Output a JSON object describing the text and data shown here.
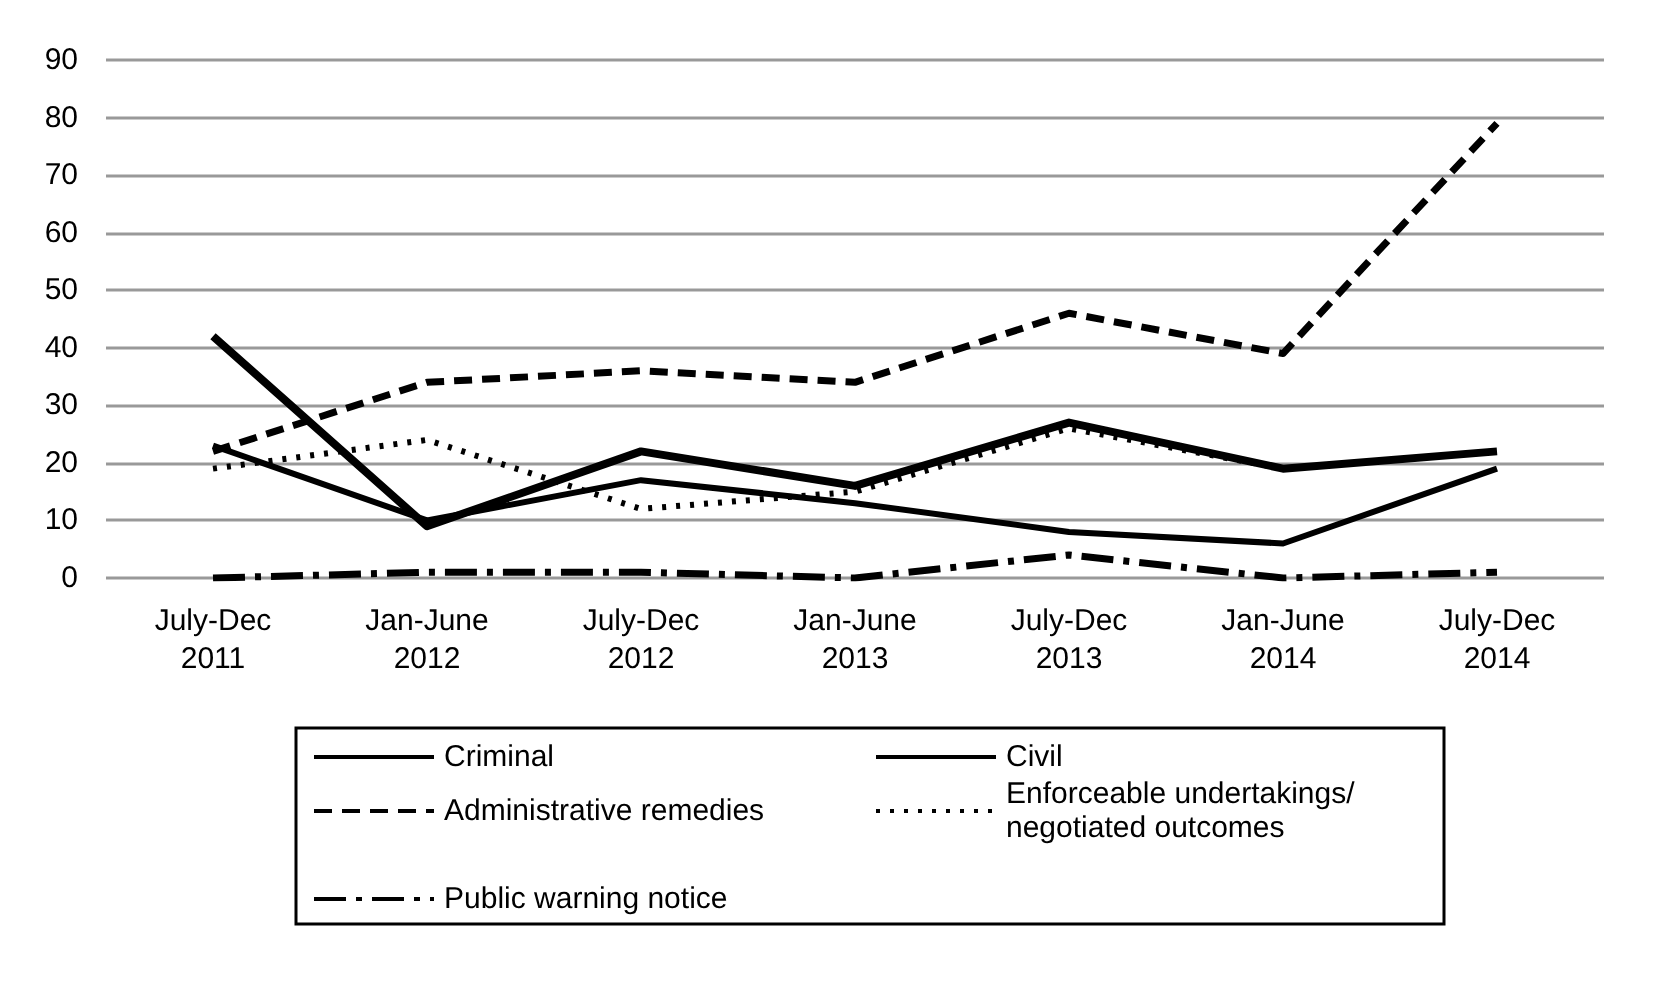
{
  "chart_data": {
    "type": "line",
    "categories": [
      "July-Dec 2011",
      "Jan-June 2012",
      "July-Dec 2012",
      "Jan-June 2013",
      "July-Dec 2013",
      "Jan-June 2014",
      "July-Dec 2014"
    ],
    "series": [
      {
        "name": "Criminal",
        "color": "#000000",
        "line_style": "solid",
        "values": [
          42,
          9,
          22,
          16,
          27,
          19,
          22
        ]
      },
      {
        "name": "Civil",
        "color": "#000000",
        "line_style": "solid",
        "values": [
          23,
          10,
          17,
          13,
          8,
          6,
          19
        ]
      },
      {
        "name": "Administrative remedies",
        "color": "#000000",
        "line_style": "dashed",
        "values": [
          22,
          34,
          36,
          34,
          46,
          39,
          79
        ]
      },
      {
        "name": "Enforceable undertakings/ negotiated outcomes",
        "color": "#000000",
        "line_style": "dotted",
        "values": [
          19,
          24,
          12,
          15,
          26,
          19,
          22
        ]
      },
      {
        "name": "Public warning notice",
        "color": "#000000",
        "line_style": "dashdot",
        "values": [
          0,
          1,
          1,
          0,
          4,
          0,
          1
        ]
      }
    ],
    "ylim": [
      0,
      90
    ],
    "yticks": [
      0,
      10,
      20,
      30,
      40,
      50,
      60,
      70,
      80,
      90
    ],
    "grid": "y",
    "legend": "bottom",
    "marker": "none"
  }
}
